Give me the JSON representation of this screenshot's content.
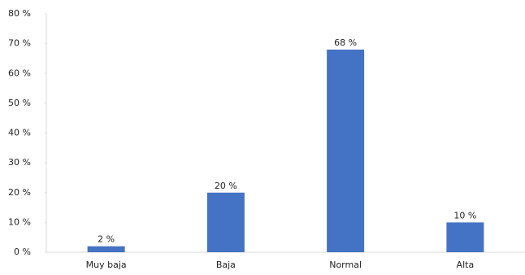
{
  "chart_data": {
    "type": "bar",
    "categories": [
      "Muy baja",
      "Baja",
      "Normal",
      "Alta"
    ],
    "values": [
      2,
      20,
      68,
      10
    ],
    "value_labels": [
      "2 %",
      "20 %",
      "68 %",
      "10 %"
    ],
    "color": "#4472c4",
    "ylim": [
      0,
      80
    ],
    "yticks": [
      {
        "value": 0,
        "label": "0 %"
      },
      {
        "value": 10,
        "label": "10 %"
      },
      {
        "value": 20,
        "label": "20 %"
      },
      {
        "value": 30,
        "label": "30 %"
      },
      {
        "value": 40,
        "label": "40 %"
      },
      {
        "value": 50,
        "label": "50 %"
      },
      {
        "value": 60,
        "label": "60 %"
      },
      {
        "value": 70,
        "label": "70 %"
      },
      {
        "value": 80,
        "label": "80 %"
      }
    ],
    "grid": false
  }
}
